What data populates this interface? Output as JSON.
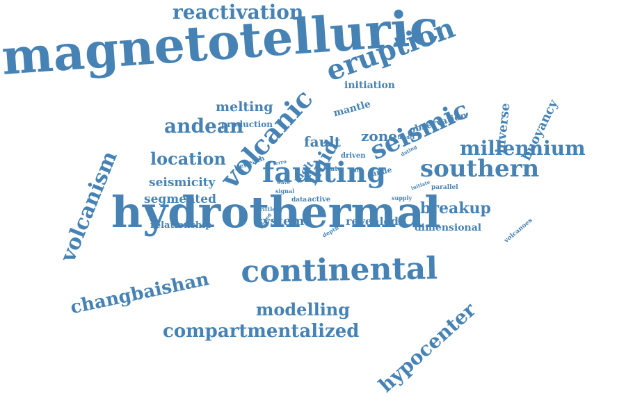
{
  "cloud": {
    "color": "#4682b4",
    "words": [
      "magnetotelluric",
      "hydrothermal",
      "continental",
      "eruption",
      "faulting",
      "volcanic",
      "seismic",
      "southern",
      "millennium",
      "reactivation",
      "andean",
      "volcanism",
      "changbaishan",
      "compartmentalized",
      "hypocenter",
      "modelling",
      "location",
      "breakup",
      "fluid",
      "fault",
      "zone",
      "buoyancy",
      "inverse",
      "seismicity",
      "segmented",
      "melting",
      "system",
      "revealed",
      "relationship",
      "dimensional",
      "initiation",
      "mantle",
      "production",
      "observation",
      "driven",
      "late",
      "date",
      "ande",
      "beneath",
      "melt",
      "ferro",
      "wave",
      "signal",
      "data",
      "active",
      "supply",
      "initiate",
      "parallel",
      "dating",
      "model",
      "brittle",
      "spring",
      "depth",
      "volcanoes"
    ]
  }
}
